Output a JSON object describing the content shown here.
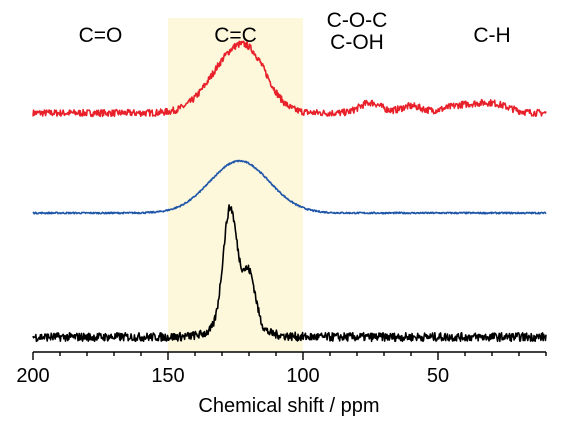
{
  "chart_data": {
    "type": "line",
    "xlabel": "Chemical shift / ppm",
    "ylabel": "",
    "xlim": [
      200,
      10
    ],
    "x_reversed": true,
    "y_axis_shown": false,
    "grid": false,
    "x_ticks": [
      200,
      150,
      100,
      50
    ],
    "x_tick_labels": [
      "200",
      "150",
      "100",
      "50"
    ],
    "highlight_region": {
      "from": 150,
      "to": 100,
      "color": "#fdf8dc"
    },
    "region_labels": [
      {
        "lines": [
          "C=O"
        ],
        "x": 175
      },
      {
        "lines": [
          "C=C"
        ],
        "x": 125
      },
      {
        "lines": [
          "C-O-C",
          "C-OH"
        ],
        "x": 80
      },
      {
        "lines": [
          "C-H"
        ],
        "x": 30
      }
    ],
    "series": [
      {
        "color": "#e8202a",
        "baseline": 0,
        "noise": 0.06,
        "peaks": [
          {
            "center": 125.5,
            "width": 9,
            "height": 1.0
          },
          {
            "center": 118,
            "width": 6,
            "height": 0.35
          },
          {
            "center": 75,
            "width": 4,
            "height": 0.18
          },
          {
            "center": 60,
            "width": 4,
            "height": 0.12
          },
          {
            "center": 42,
            "width": 6,
            "height": 0.12
          },
          {
            "center": 30,
            "width": 6,
            "height": 0.16
          }
        ]
      },
      {
        "color": "#1f56a8",
        "baseline": 0,
        "noise": 0.015,
        "peaks": [
          {
            "center": 123.5,
            "width": 11,
            "height": 1.0
          }
        ]
      },
      {
        "color": "#000000",
        "baseline": 0,
        "noise": 0.09,
        "peaks": [
          {
            "center": 127,
            "width": 2.6,
            "height": 2.45
          },
          {
            "center": 120,
            "width": 2.4,
            "height": 1.12
          },
          {
            "center": 124,
            "width": 8,
            "height": 0.25
          }
        ]
      }
    ]
  }
}
